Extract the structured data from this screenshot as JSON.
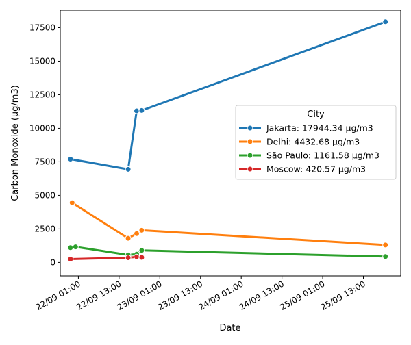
{
  "chart_data": {
    "type": "line",
    "xlabel": "Date",
    "ylabel": "Carbon Monoxide (µg/m3)",
    "x_ticks": [
      "22/09 01:00",
      "22/09 13:00",
      "23/09 01:00",
      "23/09 13:00",
      "24/09 01:00",
      "24/09 13:00",
      "25/09 01:00",
      "25/09 13:00"
    ],
    "y_ticks": [
      "0",
      "2500",
      "5000",
      "7500",
      "10000",
      "12500",
      "15000",
      "17500"
    ],
    "ylim": [
      -1000,
      18800
    ],
    "xlim": [
      "21/09 19:40",
      "26/09 00:00"
    ],
    "grid": false,
    "legend": {
      "title": "City",
      "placement": "center-right"
    },
    "series": [
      {
        "name": "Jakarta: 17944.34 µg/m3",
        "color": "#1f77b4",
        "points": [
          {
            "x": "21/09 22:40",
            "y": 7700
          },
          {
            "x": "22/09 15:40",
            "y": 6940
          },
          {
            "x": "22/09 18:10",
            "y": 11300
          },
          {
            "x": "22/09 19:40",
            "y": 11330
          },
          {
            "x": "25/09 19:30",
            "y": 17944.34
          }
        ]
      },
      {
        "name": "Delhi: 4432.68 µg/m3",
        "color": "#ff7f0e",
        "points": [
          {
            "x": "21/09 23:10",
            "y": 4450
          },
          {
            "x": "22/09 15:40",
            "y": 1800
          },
          {
            "x": "22/09 18:10",
            "y": 2150
          },
          {
            "x": "22/09 19:40",
            "y": 2400
          },
          {
            "x": "25/09 19:30",
            "y": 1300
          }
        ]
      },
      {
        "name": "São Paulo: 1161.58 µg/m3",
        "color": "#2ca02c",
        "points": [
          {
            "x": "21/09 22:40",
            "y": 1100
          },
          {
            "x": "22/09 00:10",
            "y": 1161.58
          },
          {
            "x": "22/09 15:40",
            "y": 560
          },
          {
            "x": "22/09 18:10",
            "y": 620
          },
          {
            "x": "22/09 19:40",
            "y": 900
          },
          {
            "x": "25/09 19:30",
            "y": 440
          }
        ]
      },
      {
        "name": "Moscow: 420.57 µg/m3",
        "color": "#d62728",
        "points": [
          {
            "x": "21/09 22:40",
            "y": 250
          },
          {
            "x": "22/09 15:40",
            "y": 350
          },
          {
            "x": "22/09 18:10",
            "y": 420.57
          },
          {
            "x": "22/09 19:40",
            "y": 380
          }
        ]
      }
    ]
  }
}
